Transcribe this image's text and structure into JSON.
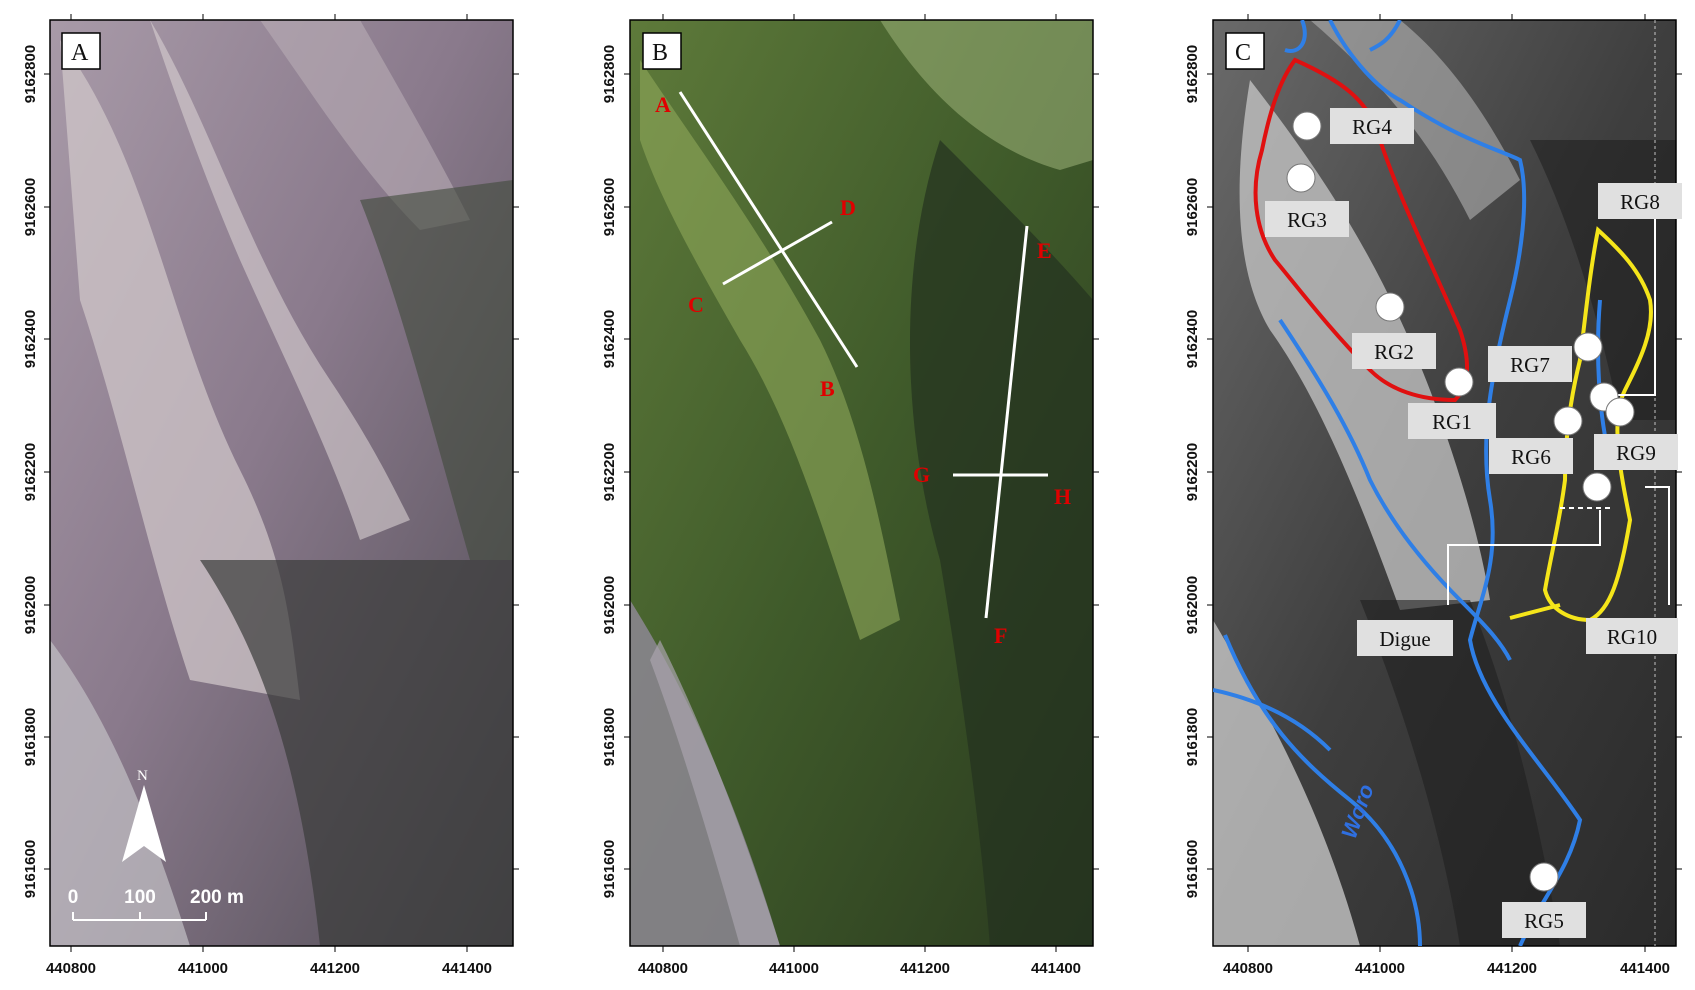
{
  "panel_a": {
    "letter": "A",
    "y_ticks": [
      "9162800",
      "9162600",
      "9162400",
      "9162200",
      "9162000",
      "9161800",
      "9161600"
    ],
    "x_ticks": [
      "440800",
      "441000",
      "441200",
      "441400"
    ],
    "north": "N",
    "scale_labels": [
      "0",
      "100",
      "200 m"
    ]
  },
  "panel_b": {
    "letter": "B",
    "y_ticks": [
      "9162800",
      "9162600",
      "9162400",
      "9162200",
      "9162000",
      "9161800",
      "9161600"
    ],
    "x_ticks": [
      "440800",
      "441000",
      "441200",
      "441400"
    ],
    "section_labels": [
      "A",
      "B",
      "C",
      "D",
      "E",
      "F",
      "G",
      "H"
    ]
  },
  "panel_c": {
    "letter": "C",
    "y_ticks": [
      "9162800",
      "9162600",
      "9162400",
      "9162200",
      "9162000",
      "9161800",
      "9161600"
    ],
    "x_ticks": [
      "440800",
      "441000",
      "441200",
      "441400"
    ],
    "gauges": [
      "RG1",
      "RG2",
      "RG3",
      "RG4",
      "RG5",
      "RG6",
      "RG7",
      "RG8",
      "RG9",
      "RG10"
    ],
    "dike_label": "Digue",
    "river_name": "Woro"
  },
  "colors": {
    "section_line": "#ffffff",
    "section_text": "#e00000",
    "catchment_red": "#e01010",
    "catchment_yellow": "#f5e51a",
    "river_blue": "#2f7fe6"
  }
}
